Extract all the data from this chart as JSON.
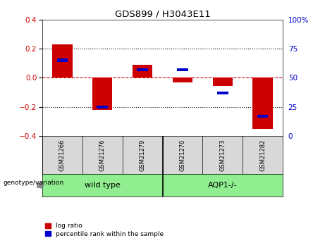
{
  "title": "GDS899 / H3043E11",
  "samples": [
    "GSM21266",
    "GSM21276",
    "GSM21279",
    "GSM21270",
    "GSM21273",
    "GSM21282"
  ],
  "log_ratios": [
    0.23,
    -0.22,
    0.09,
    -0.03,
    -0.055,
    -0.35
  ],
  "percentile_ranks": [
    65,
    25,
    57,
    57,
    37,
    17
  ],
  "groups": [
    {
      "label": "wild type",
      "indices": [
        0,
        1,
        2
      ],
      "color": "#90EE90"
    },
    {
      "label": "AQP1-/-",
      "indices": [
        3,
        4,
        5
      ],
      "color": "#66CC66"
    }
  ],
  "bar_color_red": "#CC0000",
  "bar_color_blue": "#0000CC",
  "left_ylim": [
    -0.4,
    0.4
  ],
  "right_ylim": [
    0,
    100
  ],
  "yticks_left": [
    -0.4,
    -0.2,
    0.0,
    0.2,
    0.4
  ],
  "yticks_right": [
    0,
    25,
    50,
    75,
    100
  ],
  "group_label": "genotype/variation",
  "legend_red": "log ratio",
  "legend_blue": "percentile rank within the sample",
  "background_color": "#ffffff",
  "plot_bg": "#ffffff",
  "grid_color": "#000000",
  "zero_line_color": "#CC0000",
  "label_bg": "#d8d8d8"
}
